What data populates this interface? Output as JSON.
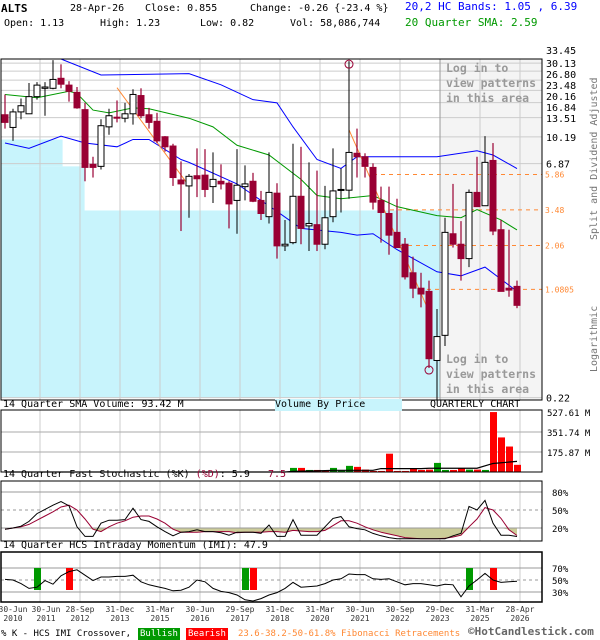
{
  "header": {
    "symbol": "ALTS",
    "date": "28-Apr-26",
    "close": "Close: 0.855",
    "change": "Change: -0.26 {-23.4 %}",
    "bands": "20,2 HC Bands: 1.05 , 6.39",
    "open": "Open: 1.13",
    "high": "High: 1.23",
    "low": "Low: 0.82",
    "vol": "Vol: 58,086,744",
    "sma": "20 Quarter SMA: 2.59"
  },
  "colors": {
    "bull": "#000000",
    "bear": "#990033",
    "band": "#0000ff",
    "sma": "#009900",
    "fib": "#ff8833",
    "vbp": "#c8f4fc",
    "locked": "#f4f4f4",
    "bullish": "#009900",
    "bearish": "#ff0000",
    "stochK": "#000000",
    "stochD": "#990033",
    "stochFill": "#cccc99"
  },
  "side_labels": {
    "adjusted": "Split and Dividend Adjusted",
    "scale": "Logarithmic"
  },
  "locked_text": [
    "Log in to",
    "view patterns",
    "in this area"
  ],
  "panels": {
    "volume_title": "14 Quarter SMA Volume: 93.42 M",
    "vbp_label": "Volume By Price",
    "chart_label": "QUARTERLY CHART",
    "stoch_title_k": "14 Quarter Fast Stochastic (%K)",
    "stoch_title_d": "(%D)",
    "stoch_k_value": ": 5.9",
    "stoch_d_value": "7.5",
    "imi_title": "14 Quarter HCS Intraday Momentum (IMI): 47.9"
  },
  "legend": {
    "crossover": "% K - HCS IMI Crossover,",
    "bullish": "Bullish",
    "bearish": "Bearish",
    "fib": "23.6-38.2-50-61.8% Fibonacci Retracements",
    "copyright": "©HotCandlestick.com"
  },
  "chart_data": [
    {
      "type": "candlestick",
      "scale": "log",
      "ylim": [
        0.22,
        33.45
      ],
      "price_ticks": [
        "33.45",
        "30.13",
        "26.80",
        "23.48",
        "20.16",
        "16.84",
        "13.51",
        "10.19",
        "6.87",
        "0.22"
      ],
      "fib_levels": [
        "5.86",
        "3.48",
        "2.06",
        "1.0805"
      ],
      "x_tick_labels": [
        [
          "30-Jun",
          "2010"
        ],
        [
          "30-Jun",
          "2011"
        ],
        [
          "28-Sep",
          "2012"
        ],
        [
          "31-Dec",
          "2013"
        ],
        [
          "31-Mar",
          "2015"
        ],
        [
          "30-Jun",
          "2016"
        ],
        [
          "29-Sep",
          "2017"
        ],
        [
          "31-Dec",
          "2018"
        ],
        [
          "31-Mar",
          "2020"
        ],
        [
          "30-Jun",
          "2021"
        ],
        [
          "30-Sep",
          "2022"
        ],
        [
          "29-Dec",
          "2023"
        ],
        [
          "31-Mar",
          "2025"
        ],
        [
          "28-Apr",
          "2026"
        ]
      ],
      "ohlc": [
        [
          14.1,
          19.0,
          11.5,
          12.6
        ],
        [
          11.7,
          15.4,
          9.6,
          14.7
        ],
        [
          14.7,
          17.9,
          13.2,
          16.1
        ],
        [
          14.3,
          22.5,
          14.3,
          18.4
        ],
        [
          18.4,
          22.8,
          17.6,
          21.8
        ],
        [
          20.8,
          22.8,
          13.9,
          21.2
        ],
        [
          20.8,
          31.5,
          20.5,
          23.7
        ],
        [
          24.1,
          29.6,
          20.8,
          22.1
        ],
        [
          21.8,
          23.1,
          17.1,
          19.9
        ],
        [
          19.6,
          21.2,
          15.4,
          15.6
        ],
        [
          15.2,
          16.8,
          5.3,
          6.5
        ],
        [
          6.8,
          7.6,
          5.6,
          6.5
        ],
        [
          6.6,
          13.2,
          6.3,
          12.0
        ],
        [
          11.8,
          15.4,
          10.5,
          13.9
        ],
        [
          13.6,
          17.4,
          12.6,
          13.4
        ],
        [
          13.4,
          16.8,
          12.6,
          14.3
        ],
        [
          14.3,
          20.5,
          12.2,
          19.0
        ],
        [
          18.7,
          20.8,
          13.4,
          13.9
        ],
        [
          14.1,
          15.6,
          11.5,
          12.6
        ],
        [
          12.8,
          14.5,
          9.3,
          9.6
        ],
        [
          10.2,
          10.3,
          8.2,
          8.8
        ],
        [
          8.9,
          9.2,
          4.95,
          5.6
        ],
        [
          5.4,
          7.1,
          2.55,
          5.1
        ],
        [
          4.95,
          5.9,
          3.1,
          5.7
        ],
        [
          5.75,
          8.6,
          4.2,
          5.5
        ],
        [
          5.8,
          8.5,
          4.2,
          4.7
        ],
        [
          4.9,
          8.1,
          3.85,
          5.45
        ],
        [
          5.3,
          6.8,
          4.7,
          5.1
        ],
        [
          5.15,
          5.3,
          2.65,
          3.8
        ],
        [
          4.0,
          8.5,
          2.45,
          5.0
        ],
        [
          4.9,
          6.7,
          4.0,
          5.1
        ],
        [
          5.3,
          6.0,
          3.9,
          3.95
        ],
        [
          4.0,
          4.6,
          3.0,
          3.3
        ],
        [
          3.15,
          8.1,
          2.85,
          4.5
        ],
        [
          4.45,
          5.15,
          1.7,
          2.05
        ],
        [
          2.05,
          3.0,
          1.9,
          2.1
        ],
        [
          2.15,
          9.2,
          2.1,
          4.25
        ],
        [
          4.25,
          8.8,
          2.1,
          2.65
        ],
        [
          2.75,
          7.0,
          1.9,
          2.85
        ],
        [
          2.8,
          6.2,
          1.9,
          2.1
        ],
        [
          2.1,
          4.95,
          1.95,
          3.1
        ],
        [
          3.15,
          8.6,
          2.9,
          4.6
        ],
        [
          4.65,
          6.4,
          3.35,
          4.7
        ],
        [
          4.65,
          31.0,
          4.1,
          8.1
        ],
        [
          8.0,
          11.5,
          5.6,
          7.6
        ],
        [
          7.6,
          8.0,
          5.6,
          6.6
        ],
        [
          6.5,
          6.9,
          3.5,
          3.9
        ],
        [
          4.0,
          4.9,
          2.15,
          3.35
        ],
        [
          3.3,
          4.9,
          1.8,
          2.4
        ],
        [
          2.5,
          4.1,
          2.0,
          2.0
        ],
        [
          2.1,
          2.3,
          1.25,
          1.3
        ],
        [
          1.38,
          1.75,
          0.95,
          1.1
        ],
        [
          1.1,
          1.38,
          0.83,
          1.01
        ],
        [
          1.05,
          1.23,
          0.34,
          0.39
        ],
        [
          0.38,
          0.81,
          0.21,
          0.54
        ],
        [
          0.55,
          3.1,
          0.47,
          2.5
        ],
        [
          2.45,
          5.1,
          2.0,
          2.1
        ],
        [
          2.1,
          2.95,
          1.23,
          1.7
        ],
        [
          1.7,
          4.7,
          1.5,
          4.5
        ],
        [
          4.5,
          7.6,
          3.65,
          3.65
        ],
        [
          3.7,
          10.3,
          3.7,
          7.0
        ],
        [
          7.2,
          9.3,
          2.4,
          2.55
        ],
        [
          2.6,
          3.0,
          1.05,
          1.05
        ],
        [
          1.1,
          2.6,
          0.97,
          1.07
        ],
        [
          1.13,
          1.23,
          0.82,
          0.855
        ]
      ],
      "marked_extremes": [
        {
          "index": 43,
          "at": "high"
        },
        {
          "index": 53,
          "at": "low"
        }
      ],
      "upper_band": [
        [
          0,
          39
        ],
        [
          7,
          38.6
        ],
        [
          12,
          25.3
        ],
        [
          23,
          25.8
        ],
        [
          27,
          21.9
        ],
        [
          31,
          17.6
        ],
        [
          34,
          16.8
        ],
        [
          36,
          11.8
        ],
        [
          39,
          7.3
        ],
        [
          42,
          6.4
        ],
        [
          44,
          7.6
        ],
        [
          54,
          7.6
        ],
        [
          59,
          8.3
        ],
        [
          61,
          7.8
        ],
        [
          64,
          6.39
        ]
      ],
      "lower_band": [
        [
          0,
          9.3
        ],
        [
          3,
          8.6
        ],
        [
          7,
          10.3
        ],
        [
          10,
          9.3
        ],
        [
          14,
          8.8
        ],
        [
          16,
          9.8
        ],
        [
          18,
          9.8
        ],
        [
          22,
          7.3
        ],
        [
          23,
          7.0
        ],
        [
          29,
          5.1
        ],
        [
          34,
          3.4
        ],
        [
          37,
          2.65
        ],
        [
          42,
          2.5
        ],
        [
          44,
          2.4
        ],
        [
          46,
          2.45
        ],
        [
          49,
          1.94
        ],
        [
          54,
          1.4
        ],
        [
          57,
          1.32
        ],
        [
          60,
          1.5
        ],
        [
          64,
          1.05
        ]
      ],
      "sma20": [
        [
          0,
          19.0
        ],
        [
          4,
          18.1
        ],
        [
          8,
          19.9
        ],
        [
          9,
          19.3
        ],
        [
          11,
          15.1
        ],
        [
          13,
          14.5
        ],
        [
          16,
          15.6
        ],
        [
          18,
          15.4
        ],
        [
          23,
          13.4
        ],
        [
          26,
          11.8
        ],
        [
          29,
          9.0
        ],
        [
          33,
          7.8
        ],
        [
          37,
          5.45
        ],
        [
          39,
          4.3
        ],
        [
          42,
          4.1
        ],
        [
          46,
          4.3
        ],
        [
          49,
          3.65
        ],
        [
          54,
          3.2
        ],
        [
          57,
          3.1
        ],
        [
          59,
          3.5
        ],
        [
          62,
          3.0
        ],
        [
          64,
          2.59
        ]
      ],
      "trendlines": [
        [
          [
            14,
            21.0
          ],
          [
            23,
            4.95
          ]
        ],
        [
          [
            43,
            11.3
          ],
          [
            53,
            0.78
          ]
        ]
      ],
      "volume_by_price": [
        {
          "from": 6.6,
          "to": 9.8,
          "relative": 0.14
        },
        {
          "from": 3.45,
          "to": 6.6,
          "relative": 0.19
        },
        {
          "from": 0.22,
          "to": 3.45,
          "relative": 1.0
        }
      ]
    },
    {
      "type": "bar",
      "title": "14 Quarter SMA Volume: 93.42 M",
      "unit": "M",
      "ylim": [
        0,
        527.61
      ],
      "y_ticks": [
        "527.61 M",
        "351.74 M",
        "175.87 M"
      ],
      "bars": [
        [
          36,
          36,
          "up"
        ],
        [
          37,
          36,
          "down"
        ],
        [
          38,
          18,
          "up"
        ],
        [
          39,
          18,
          "down"
        ],
        [
          40,
          9,
          "down"
        ],
        [
          41,
          36,
          "up"
        ],
        [
          42,
          12,
          "up"
        ],
        [
          43,
          54,
          "up"
        ],
        [
          44,
          45,
          "down"
        ],
        [
          45,
          21,
          "down"
        ],
        [
          46,
          9,
          "down"
        ],
        [
          47,
          9,
          "down"
        ],
        [
          48,
          161,
          "down"
        ],
        [
          49,
          9,
          "down"
        ],
        [
          50,
          9,
          "down"
        ],
        [
          51,
          33,
          "down"
        ],
        [
          52,
          18,
          "down"
        ],
        [
          53,
          21,
          "down"
        ],
        [
          54,
          80,
          "up"
        ],
        [
          55,
          18,
          "up"
        ],
        [
          56,
          18,
          "down"
        ],
        [
          57,
          33,
          "down"
        ],
        [
          58,
          21,
          "up"
        ],
        [
          59,
          21,
          "down"
        ],
        [
          60,
          18,
          "up"
        ],
        [
          61,
          527,
          "down"
        ],
        [
          62,
          304,
          "down"
        ],
        [
          63,
          224,
          "down"
        ],
        [
          64,
          63,
          "down"
        ]
      ],
      "sma": [
        [
          0,
          0
        ],
        [
          35,
          0
        ],
        [
          36,
          6
        ],
        [
          40,
          12
        ],
        [
          41,
          15
        ],
        [
          46,
          15
        ],
        [
          47,
          30
        ],
        [
          52,
          30
        ],
        [
          53,
          33
        ],
        [
          59,
          33
        ],
        [
          61,
          75
        ],
        [
          64,
          93.42
        ]
      ]
    },
    {
      "type": "line",
      "title": "14 Quarter Fast Stochastic",
      "ylim": [
        0,
        100
      ],
      "y_ticks": [
        "80%",
        "50%",
        "20%"
      ],
      "k": [
        18,
        20,
        23,
        31,
        44,
        51,
        58,
        64,
        57,
        22,
        6,
        6,
        28,
        33,
        33,
        34,
        53,
        34,
        31,
        22,
        14,
        7,
        13,
        14,
        17,
        14,
        14,
        12,
        8,
        13,
        13,
        13,
        11,
        25,
        6,
        6,
        34,
        8,
        8,
        8,
        22,
        36,
        39,
        22,
        19,
        17,
        11,
        7,
        4,
        2,
        2,
        2,
        2,
        2,
        2,
        2,
        7,
        11,
        56,
        50,
        66,
        28,
        8,
        8,
        5.9
      ],
      "d": [
        18,
        20,
        22,
        26,
        33,
        40,
        47,
        55,
        58,
        50,
        35,
        18,
        14,
        22,
        28,
        32,
        38,
        40,
        40,
        35,
        28,
        18,
        13,
        13,
        13,
        14,
        14,
        14,
        14,
        12,
        13,
        13,
        13,
        14,
        14,
        13,
        16,
        15,
        14,
        14,
        16,
        24,
        32,
        32,
        28,
        22,
        17,
        13,
        10,
        7,
        4,
        3,
        2,
        2,
        2,
        3,
        5,
        8,
        22,
        35,
        54,
        50,
        36,
        17,
        7.5
      ]
    },
    {
      "type": "line",
      "title": "14 Quarter HCS Intraday Momentum (IMI): 47.9",
      "ylim": [
        0,
        100
      ],
      "y_ticks": [
        "70%",
        "50%",
        "30%"
      ],
      "imi": [
        51,
        50,
        44,
        36,
        38,
        49,
        43,
        57,
        64,
        67,
        58,
        49,
        55,
        55,
        56,
        56,
        58,
        47,
        42,
        39,
        36,
        32,
        33,
        38,
        50,
        47,
        36,
        31,
        29,
        25,
        17,
        14,
        19,
        25,
        29,
        36,
        46,
        38,
        39,
        40,
        44,
        50,
        52,
        60,
        59,
        59,
        52,
        51,
        52,
        47,
        42,
        44,
        44,
        42,
        40,
        43,
        42,
        22,
        40,
        50,
        61,
        50,
        46,
        47,
        47.9
      ],
      "crossovers": [
        [
          4,
          "bullish"
        ],
        [
          8,
          "bearish"
        ],
        [
          30,
          "bullish"
        ],
        [
          31,
          "bearish"
        ],
        [
          58,
          "bullish"
        ],
        [
          61,
          "bearish"
        ]
      ]
    }
  ]
}
